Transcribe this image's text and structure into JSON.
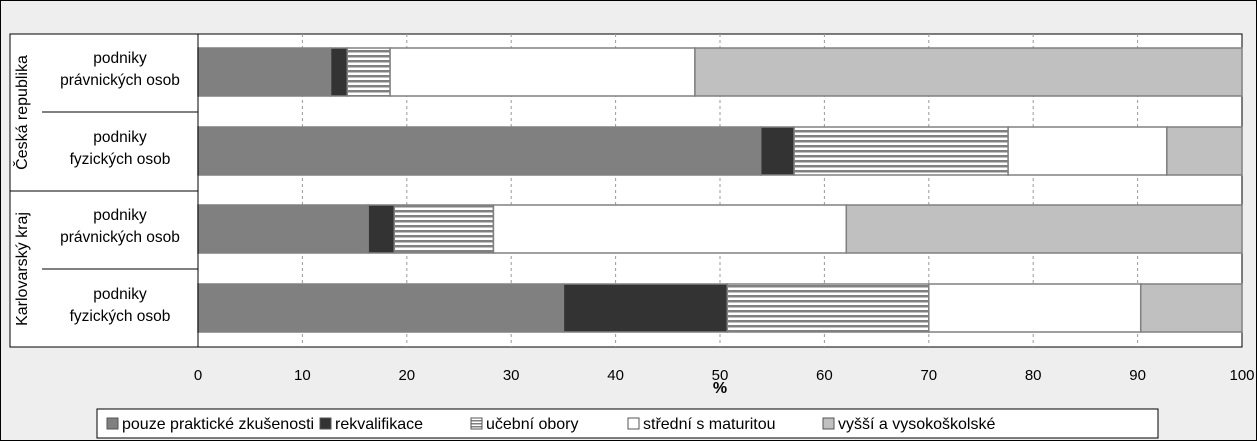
{
  "chart_data": {
    "type": "bar",
    "orientation": "horizontal",
    "stacked": true,
    "xlabel": "%",
    "xlim": [
      0,
      100
    ],
    "x_ticks": [
      "0",
      "10",
      "20",
      "30",
      "40",
      "50",
      "60",
      "70",
      "80",
      "90",
      "100"
    ],
    "grid": "vertical dashed",
    "legend_position": "bottom",
    "groups": [
      {
        "label": "Česká republika",
        "categories": [
          "podniky|právnických osob",
          "podniky|fyzických osob"
        ]
      },
      {
        "label": "Karlovarský kraj",
        "categories": [
          "podniky|právnických osob",
          "podniky|fyzických osob"
        ]
      }
    ],
    "series": [
      {
        "name": "pouze praktické zkušenosti",
        "color": "#808080",
        "pattern": "solid",
        "values": [
          12.7,
          53.9,
          16.3,
          35.0
        ]
      },
      {
        "name": "rekvalifikace",
        "color": "#333333",
        "pattern": "solid",
        "values": [
          1.6,
          3.2,
          2.5,
          15.7
        ]
      },
      {
        "name": "učební obory",
        "color": "#ffffff",
        "pattern": "horizontal-stripes",
        "values": [
          4.1,
          20.5,
          9.5,
          19.3
        ]
      },
      {
        "name": "střední s maturitou",
        "color": "#ffffff",
        "pattern": "solid",
        "values": [
          29.2,
          15.2,
          33.8,
          20.3
        ]
      },
      {
        "name": "vyšší a vysokoškolské",
        "color": "#c0c0c0",
        "pattern": "solid",
        "values": [
          52.4,
          7.2,
          37.9,
          9.7
        ]
      }
    ]
  }
}
